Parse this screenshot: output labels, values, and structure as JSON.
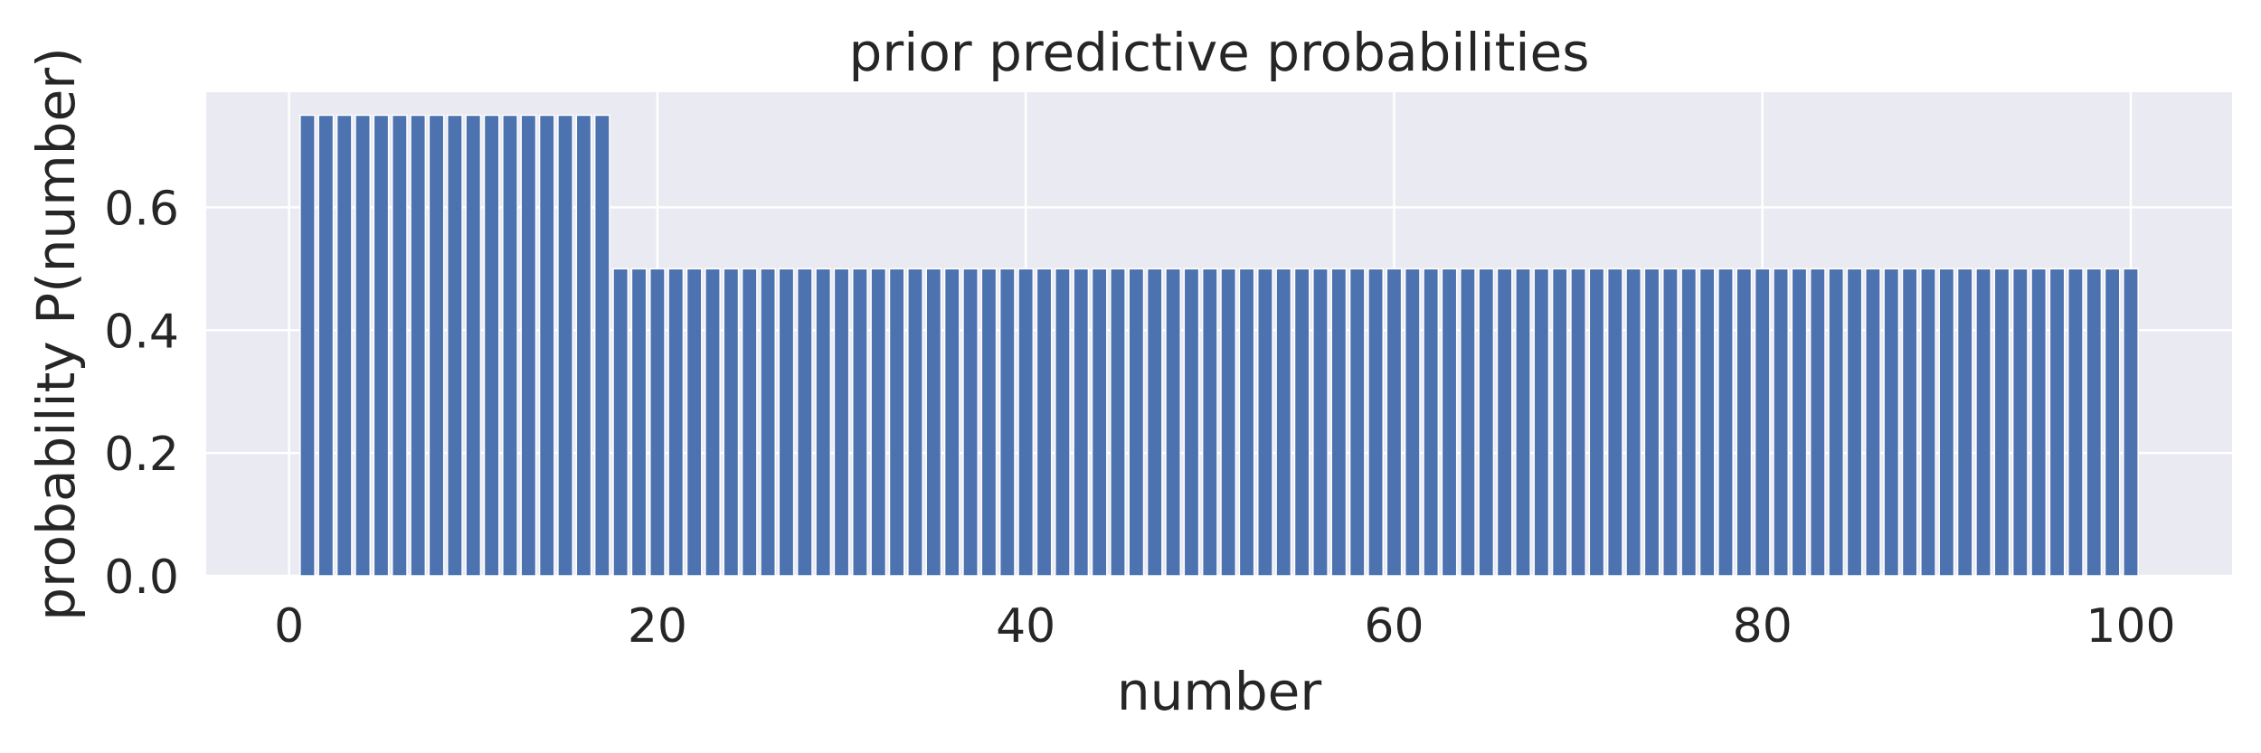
{
  "chart_data": {
    "type": "bar",
    "title": "prior predictive probabilities",
    "xlabel": "number",
    "ylabel": "probability P(number)",
    "xlim": [
      -4.5,
      105.5
    ],
    "ylim": [
      0,
      0.7875
    ],
    "xticks": [
      0,
      20,
      40,
      60,
      80,
      100
    ],
    "xtick_labels": [
      "0",
      "20",
      "40",
      "60",
      "80",
      "100"
    ],
    "yticks": [
      0.0,
      0.2,
      0.4,
      0.6
    ],
    "ytick_labels": [
      "0.0",
      "0.2",
      "0.4",
      "0.6"
    ],
    "grid": true,
    "bar_color": "#4c72b0",
    "background_color": "#eaeaf2",
    "bars": [
      {
        "x_start": 1,
        "x_end": 17,
        "value": 0.75
      },
      {
        "x_start": 18,
        "x_end": 100,
        "value": 0.5
      }
    ]
  }
}
